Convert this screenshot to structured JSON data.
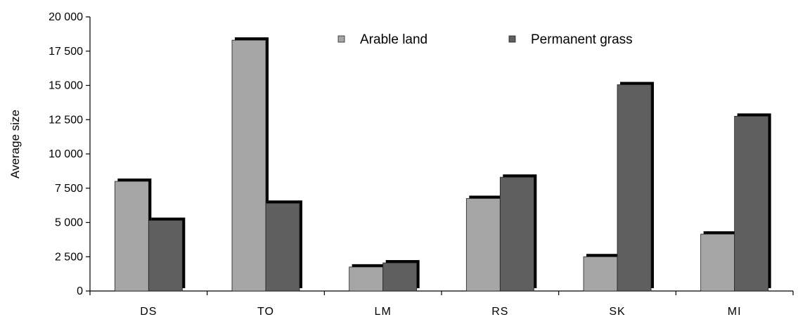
{
  "chart_data": {
    "type": "bar",
    "title": "",
    "xlabel": "",
    "ylabel": "Average size",
    "categories": [
      "DS",
      "TO",
      "LM",
      "RS",
      "SK",
      "MI"
    ],
    "series": [
      {
        "name": "Arable land",
        "color": "#a6a6a6",
        "values": [
          8000,
          18300,
          1750,
          6750,
          2500,
          4150
        ]
      },
      {
        "name": "Permanent grass",
        "color": "#5f5f5f",
        "values": [
          5150,
          6400,
          2050,
          8300,
          15050,
          12750
        ]
      }
    ],
    "ylim": [
      0,
      20000
    ],
    "yticks": [
      0,
      2500,
      5000,
      7500,
      10000,
      12500,
      15000,
      17500,
      20000
    ],
    "ytick_labels": [
      "0",
      "2 500",
      "5 000",
      "7 500",
      "10 000",
      "12 500",
      "15 000",
      "17 500",
      "20 000"
    ],
    "grid": false,
    "legend": "top-center",
    "bar_style": "3d-shadow"
  }
}
